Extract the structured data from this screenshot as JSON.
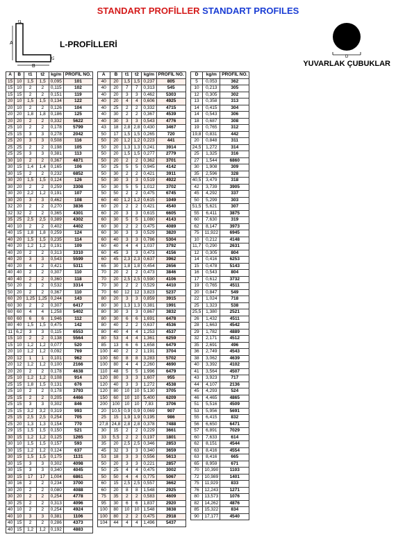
{
  "header": {
    "red": "STANDART PROFİLLER",
    "blue": "STANDART PROFILES"
  },
  "lprofile": {
    "title": "L-PROFİLLERİ",
    "A": "A",
    "B": "B",
    "t1": "t1",
    "t2": "t2"
  },
  "roundbar": {
    "title": "YUVARLAK ÇUBUKLAR",
    "D": "D"
  },
  "headers_l": [
    "A",
    "B",
    "t1",
    "t2",
    "kg/m",
    "PROFİL NO."
  ],
  "headers_r": [
    "D",
    "kg/m",
    "PROFİL NO."
  ],
  "t1_rows": [
    [
      "15",
      "10",
      "1,5",
      "1,5",
      "0,095",
      "101"
    ],
    [
      "15",
      "10",
      "2",
      "2",
      "0,115",
      "102"
    ],
    [
      "15",
      "15",
      "2",
      "2",
      "0,151",
      "119"
    ],
    [
      "20",
      "10",
      "1,5",
      "1,5",
      "0,134",
      "122"
    ],
    [
      "20",
      "10",
      "2",
      "2",
      "0,126",
      "104"
    ],
    [
      "20",
      "20",
      "1,8",
      "1,8",
      "0,186",
      "125"
    ],
    [
      "20",
      "20",
      "2",
      "2",
      "0,332",
      "5622"
    ],
    [
      "25",
      "10",
      "2",
      "2",
      "0,178",
      "5799"
    ],
    [
      "25",
      "15",
      "3",
      "3",
      "0,278",
      "2042"
    ],
    [
      "25",
      "20",
      "3",
      "3",
      "0,508",
      "116"
    ],
    [
      "25",
      "25",
      "2",
      "2",
      "0,198",
      "105"
    ],
    [
      "25",
      "25",
      "3",
      "3",
      "0,381",
      "113"
    ],
    [
      "30",
      "10",
      "2",
      "2",
      "0,367",
      "4871"
    ],
    [
      "30",
      "15",
      "1,4",
      "1,4",
      "0,165",
      "106"
    ],
    [
      "30",
      "15",
      "2",
      "2",
      "0,232",
      "6852"
    ],
    [
      "30",
      "20",
      "1,5",
      "1,5",
      "0,124",
      "126"
    ],
    [
      "30",
      "20",
      "2",
      "2",
      "0,259",
      "3308"
    ],
    [
      "30",
      "20",
      "2,2",
      "1,2",
      "0,191",
      "107"
    ],
    [
      "30",
      "20",
      "3",
      "3",
      "0,462",
      "108"
    ],
    [
      "32",
      "20",
      "2",
      "2",
      "0,270",
      "3836"
    ],
    [
      "32",
      "32",
      "2",
      "2",
      "0,365",
      "4301"
    ],
    [
      "35",
      "25",
      "2,5",
      "2,5",
      "0,389",
      "4302"
    ],
    [
      "40",
      "10",
      "2",
      "2",
      "0,402",
      "4402"
    ],
    [
      "40",
      "15",
      "1,8",
      "1,8",
      "0,259",
      "124"
    ],
    [
      "40",
      "20",
      "1,5",
      "1,5",
      "0,235",
      "114"
    ],
    [
      "40",
      "20",
      "1,2",
      "1,2",
      "0,191",
      "109"
    ],
    [
      "40",
      "20",
      "2",
      "2",
      "0,313",
      "3310"
    ],
    [
      "40",
      "20",
      "3",
      "3",
      "0,543",
      "5599"
    ],
    [
      "40",
      "20",
      "4",
      "2",
      "0,421",
      "5311"
    ],
    [
      "40",
      "40",
      "2",
      "2",
      "0,307",
      "110"
    ],
    [
      "40",
      "40",
      "2",
      "2",
      "0,360",
      "118"
    ],
    [
      "50",
      "20",
      "2",
      "2",
      "0,532",
      "3314"
    ],
    [
      "50",
      "20",
      "2",
      "2",
      "0,367",
      "110"
    ],
    [
      "60",
      "20",
      "1,25",
      "1,25",
      "0,244",
      "143"
    ],
    [
      "60",
      "30",
      "2",
      "2",
      "0,307",
      "6417"
    ],
    [
      "60",
      "60",
      "4",
      "4",
      "1,258",
      "5402"
    ],
    [
      "60",
      "60",
      "6",
      "6",
      "1,946",
      "112"
    ],
    [
      "80",
      "40",
      "1,5",
      "1,5",
      "0,475",
      "142"
    ],
    [
      "11",
      "6,2",
      "3",
      "3",
      "0,115",
      "6553"
    ],
    [
      "15",
      "10",
      "2",
      "2",
      "0,138",
      "5564"
    ],
    [
      "15",
      "10",
      "1,2",
      "1,2",
      "0,077",
      "520"
    ],
    [
      "20",
      "10",
      "1,2",
      "1,2",
      "0,092",
      "769"
    ],
    [
      "20",
      "12",
      "1",
      "1",
      "0,101",
      "962"
    ],
    [
      "20",
      "12",
      "1,2",
      "1,2",
      "0,100",
      "2166"
    ],
    [
      "20",
      "20",
      "2",
      "2",
      "0,178",
      "4638"
    ],
    [
      "25",
      "10",
      "1,2",
      "1,2",
      "0,108",
      "914"
    ],
    [
      "25",
      "15",
      "1,8",
      "1,5",
      "0,131",
      "676"
    ],
    [
      "25",
      "10",
      "2",
      "2",
      "0,178",
      "3793"
    ],
    [
      "25",
      "15",
      "2",
      "2",
      "0,205",
      "4466"
    ],
    [
      "25",
      "15",
      "3",
      "3",
      "0,302",
      "846"
    ],
    [
      "25",
      "15",
      "3,2",
      "3,2",
      "0,319",
      "993"
    ],
    [
      "25",
      "15",
      "2,5",
      "2,5",
      "0,254",
      "705"
    ],
    [
      "25",
      "20",
      "1,3",
      "1,3",
      "0,154",
      "770"
    ],
    [
      "29",
      "15",
      "1,5",
      "1,5",
      "0,150",
      "521"
    ],
    [
      "30",
      "15",
      "1,2",
      "1,2",
      "0,125",
      "1265"
    ],
    [
      "30",
      "10",
      "1,5",
      "1,5",
      "0,157",
      "593"
    ],
    [
      "30",
      "15",
      "1,2",
      "1,2",
      "0,124",
      "637"
    ],
    [
      "30",
      "15",
      "1,5",
      "1,5",
      "0,175",
      "1131"
    ],
    [
      "30",
      "15",
      "3",
      "3",
      "0,302",
      "4098"
    ],
    [
      "30",
      "15",
      "3",
      "3",
      "0,340",
      "4045"
    ],
    [
      "30",
      "15",
      "17",
      "17",
      "1,004",
      "6861"
    ],
    [
      "30",
      "16",
      "2",
      "2",
      "0,234",
      "3700"
    ],
    [
      "30",
      "20",
      "2",
      "2",
      "0,080",
      "4088"
    ],
    [
      "30",
      "20",
      "2",
      "2",
      "0,254",
      "4778"
    ],
    [
      "30",
      "25",
      "2",
      "2",
      "0,313",
      "4096"
    ],
    [
      "40",
      "10",
      "2",
      "2",
      "0,254",
      "4924"
    ],
    [
      "40",
      "10",
      "3",
      "3",
      "0,381",
      "1106"
    ],
    [
      "40",
      "15",
      "2",
      "2",
      "0,286",
      "4373"
    ],
    [
      "40",
      "15",
      "1,2",
      "1,2",
      "0,192",
      "4883"
    ]
  ],
  "t2_rows": [
    [
      "40",
      "20",
      "1,5",
      "1,5",
      "0,237",
      "805"
    ],
    [
      "40",
      "20",
      "7",
      "7",
      "0,313",
      "545"
    ],
    [
      "40",
      "20",
      "3",
      "3",
      "0,462",
      "5303"
    ],
    [
      "40",
      "20",
      "4",
      "4",
      "0,606",
      "4925"
    ],
    [
      "40",
      "25",
      "2",
      "2",
      "0,332",
      "4715"
    ],
    [
      "40",
      "30",
      "2",
      "2",
      "0,367",
      "4539"
    ],
    [
      "40",
      "30",
      "3",
      "3",
      "0,543",
      "4776"
    ],
    [
      "43",
      "18",
      "2,8",
      "2,8",
      "0,430",
      "3467"
    ],
    [
      "50",
      "17",
      "1,5",
      "1,5",
      "0,265",
      "720"
    ],
    [
      "50",
      "20",
      "1,2",
      "1,2",
      "0,223",
      "441"
    ],
    [
      "50",
      "20",
      "1,3",
      "1,3",
      "0,241",
      "3914"
    ],
    [
      "50",
      "20",
      "1,5",
      "1,5",
      "0,277",
      "2779"
    ],
    [
      "50",
      "20",
      "2",
      "2",
      "0,362",
      "3701"
    ],
    [
      "50",
      "25",
      "5",
      "5",
      "0,945",
      "4142"
    ],
    [
      "50",
      "30",
      "2",
      "2",
      "0,421",
      "3911"
    ],
    [
      "50",
      "30",
      "3",
      "3",
      "0,519",
      "4922"
    ],
    [
      "50",
      "30",
      "5",
      "5",
      "1,012",
      "3702"
    ],
    [
      "50",
      "50",
      "2",
      "2",
      "0,475",
      "6745"
    ],
    [
      "60",
      "40",
      "1,2",
      "1,2",
      "0,615",
      "1049"
    ],
    [
      "60",
      "20",
      "2",
      "2",
      "0,421",
      "4540"
    ],
    [
      "60",
      "20",
      "3",
      "3",
      "0,615",
      "6605"
    ],
    [
      "60",
      "30",
      "5",
      "5",
      "1,080",
      "4143"
    ],
    [
      "60",
      "30",
      "2",
      "2",
      "0,475",
      "4089"
    ],
    [
      "60",
      "30",
      "3",
      "3",
      "0,529",
      "3820"
    ],
    [
      "60",
      "40",
      "3",
      "3",
      "0,786",
      "5304"
    ],
    [
      "60",
      "40",
      "4",
      "4",
      "1,037",
      "3792"
    ],
    [
      "60",
      "45",
      "3",
      "3",
      "0,473",
      "4156"
    ],
    [
      "60",
      "45",
      "2,3",
      "2,3",
      "0,637",
      "3962"
    ],
    [
      "65",
      "30",
      "1,8",
      "1,8",
      "0,454",
      "2656"
    ],
    [
      "70",
      "20",
      "2",
      "2",
      "0,473",
      "3846"
    ],
    [
      "70",
      "20",
      "2,5",
      "2,5",
      "0,590",
      "4106"
    ],
    [
      "70",
      "30",
      "2",
      "2",
      "0,529",
      "4410"
    ],
    [
      "70",
      "60",
      "12",
      "12",
      "3,823",
      "5237"
    ],
    [
      "80",
      "20",
      "3",
      "3",
      "0,859",
      "3915"
    ],
    [
      "80",
      "30",
      "1,3",
      "1,3",
      "0,381",
      "1991"
    ],
    [
      "80",
      "30",
      "3",
      "3",
      "0,867",
      "3832"
    ],
    [
      "80",
      "30",
      "6",
      "6",
      "1,691",
      "6478"
    ],
    [
      "80",
      "40",
      "2",
      "2",
      "0,637",
      "4536"
    ],
    [
      "80",
      "40",
      "4",
      "4",
      "1,253",
      "4537"
    ],
    [
      "80",
      "53",
      "4",
      "4",
      "1,361",
      "6259"
    ],
    [
      "85",
      "13",
      "6",
      "6",
      "1,658",
      "6479"
    ],
    [
      "100",
      "40",
      "2",
      "2",
      "1,191",
      "3704"
    ],
    [
      "100",
      "60",
      "8",
      "8",
      "3,283",
      "5702"
    ],
    [
      "100",
      "80",
      "4",
      "4",
      "2,260",
      "4690"
    ],
    [
      "110",
      "48",
      "5",
      "5",
      "1,996",
      "6479"
    ],
    [
      "120",
      "80",
      "3",
      "3",
      "1,607",
      "955"
    ],
    [
      "120",
      "40",
      "3",
      "3",
      "1,272",
      "4538"
    ],
    [
      "120",
      "80",
      "10",
      "10",
      "5,130",
      "3705"
    ],
    [
      "150",
      "60",
      "10",
      "10",
      "5,400",
      "6209"
    ],
    [
      "200",
      "100",
      "10",
      "10",
      "7,83",
      "3706"
    ],
    [
      "20",
      "10,5",
      "0,9",
      "0,9",
      "0,069",
      "907"
    ],
    [
      "25",
      "15",
      "1,9",
      "1,9",
      "0,195",
      "986"
    ],
    [
      "27,8",
      "24,8",
      "2,8",
      "2,8",
      "0,378",
      "7488"
    ],
    [
      "30",
      "15",
      "2",
      "2",
      "0,229",
      "3661"
    ],
    [
      "33",
      "5,5",
      "2",
      "2",
      "0,197",
      "1801"
    ],
    [
      "35",
      "20",
      "2,5",
      "2,5",
      "0,346",
      "2853"
    ],
    [
      "45",
      "32",
      "3",
      "3",
      "0,340",
      "3659"
    ],
    [
      "53",
      "18",
      "3",
      "3",
      "0,556",
      "5613"
    ],
    [
      "50",
      "20",
      "3",
      "3",
      "0,221",
      "2857"
    ],
    [
      "50",
      "25",
      "4",
      "4",
      "0,475",
      "3002"
    ],
    [
      "50",
      "50",
      "4",
      "4",
      "0,775",
      "5067"
    ],
    [
      "60",
      "15",
      "2,5",
      "2,5",
      "0,557",
      "3662"
    ],
    [
      "60",
      "20",
      "8",
      "8",
      "1,548",
      "2925"
    ],
    [
      "75",
      "35",
      "2",
      "2",
      "0,583",
      "4609"
    ],
    [
      "95",
      "30",
      "6",
      "6",
      "1,837",
      "2920"
    ],
    [
      "100",
      "80",
      "10",
      "10",
      "1,548",
      "3838"
    ],
    [
      "100",
      "80",
      "2",
      "2",
      "0,475",
      "2918"
    ],
    [
      "104",
      "44",
      "4",
      "4",
      "1,496",
      "5437"
    ]
  ],
  "t3_rows": [
    [
      "5",
      "0,053",
      "362"
    ],
    [
      "10",
      "0,213",
      "305"
    ],
    [
      "12",
      "0,305",
      "302"
    ],
    [
      "13",
      "0,358",
      "313"
    ],
    [
      "14",
      "0,415",
      "304"
    ],
    [
      "14",
      "0,543",
      "306"
    ],
    [
      "18",
      "0,687",
      "308"
    ],
    [
      "19",
      "0,765",
      "312"
    ],
    [
      "19,8",
      "0,831",
      "442"
    ],
    [
      "20",
      "0,848",
      "311"
    ],
    [
      "24,5",
      "1,272",
      "314"
    ],
    [
      "25",
      "1,325",
      "316"
    ],
    [
      "27",
      "1,544",
      "6860"
    ],
    [
      "30",
      "1,908",
      "309"
    ],
    [
      "35",
      "2,596",
      "328"
    ],
    [
      "40,5",
      "3,479",
      "318"
    ],
    [
      "42",
      "3,739",
      "3905"
    ],
    [
      "45",
      "4,292",
      "337"
    ],
    [
      "50",
      "5,299",
      "303"
    ],
    [
      "51,5",
      "5,621",
      "307"
    ],
    [
      "55",
      "6,411",
      "3875"
    ],
    [
      "60",
      "7,630",
      "319"
    ],
    [
      "62",
      "8,147",
      "3973"
    ],
    [
      "75",
      "11,922",
      "6945"
    ],
    [
      "10",
      "0,212",
      "4148"
    ],
    [
      "11,7",
      "0,290",
      "2631"
    ],
    [
      "12",
      "0,305",
      "804"
    ],
    [
      "14",
      "0,416",
      "6253"
    ],
    [
      "15",
      "0,478",
      "5143"
    ],
    [
      "16",
      "0,543",
      "804"
    ],
    [
      "17",
      "0,612",
      "3732"
    ],
    [
      "19",
      "0,765",
      "4511"
    ],
    [
      "20",
      "0,847",
      "549"
    ],
    [
      "22",
      "1,024",
      "718"
    ],
    [
      "25",
      "1,323",
      "538"
    ],
    [
      "25,5",
      "1,380",
      "2521"
    ],
    [
      "26",
      "1,432",
      "4511"
    ],
    [
      "28",
      "1,663",
      "4542"
    ],
    [
      "29",
      "1,782",
      "4889"
    ],
    [
      "32",
      "2,171",
      "4512"
    ],
    [
      "35",
      "2,691",
      "496"
    ],
    [
      "36",
      "2,749",
      "4543"
    ],
    [
      "38",
      "3,062",
      "4639"
    ],
    [
      "40",
      "3,392",
      "4102"
    ],
    [
      "41",
      "3,564",
      "4507"
    ],
    [
      "43",
      "3,923",
      "717"
    ],
    [
      "44",
      "4,107",
      "2136"
    ],
    [
      "45",
      "4,293",
      "524"
    ],
    [
      "46",
      "4,465",
      "4865"
    ],
    [
      "51",
      "5,516",
      "4509"
    ],
    [
      "53",
      "5,956",
      "5691"
    ],
    [
      "55",
      "6,415",
      "832"
    ],
    [
      "56",
      "6,650",
      "6471"
    ],
    [
      "57",
      "6,891",
      "7029"
    ],
    [
      "60",
      "7,633",
      "614"
    ],
    [
      "62",
      "8,151",
      "4544"
    ],
    [
      "63",
      "8,416",
      "4554"
    ],
    [
      "63",
      "8,416",
      "665"
    ],
    [
      "65",
      "8,959",
      "671"
    ],
    [
      "70",
      "10,390",
      "1103"
    ],
    [
      "72",
      "10,989",
      "1401"
    ],
    [
      "75",
      "11,929",
      "833"
    ],
    [
      "76",
      "12,243",
      "1271"
    ],
    [
      "80",
      "13,573",
      "1076"
    ],
    [
      "82",
      "14,262",
      "4876"
    ],
    [
      "85",
      "15,322",
      "834"
    ],
    [
      "90",
      "17,177",
      "4540"
    ]
  ]
}
